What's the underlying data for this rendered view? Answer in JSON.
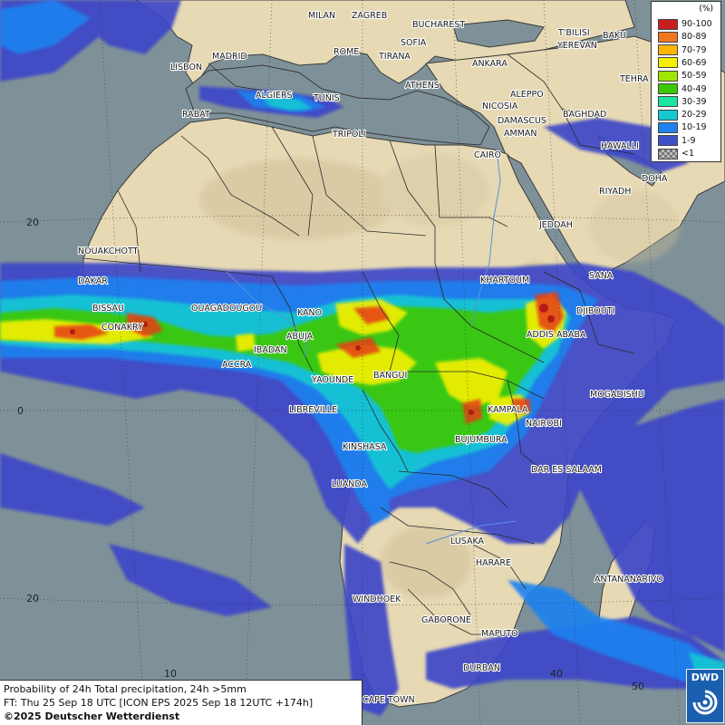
{
  "legend": {
    "unit": "(%)",
    "entries": [
      {
        "label": "90-100",
        "color": "#c81e1e"
      },
      {
        "label": "80-89",
        "color": "#f07820"
      },
      {
        "label": "70-79",
        "color": "#ffb400"
      },
      {
        "label": "60-69",
        "color": "#f5f000"
      },
      {
        "label": "50-59",
        "color": "#a0e600"
      },
      {
        "label": "40-49",
        "color": "#3cc800"
      },
      {
        "label": "30-39",
        "color": "#19e6a0"
      },
      {
        "label": "20-29",
        "color": "#14c8d2"
      },
      {
        "label": "10-19",
        "color": "#1e82f0"
      },
      {
        "label": "1-9",
        "color": "#3c50c8"
      },
      {
        "label": "<1",
        "color": "#9a9a9a"
      }
    ]
  },
  "info": {
    "line1": "Probability of 24h Total precipitation, 24h >5mm",
    "line2": "FT: Thu 25 Sep 18 UTC [ICON EPS 2025 Sep 18 12UTC +174h]",
    "line3": "©2025 Deutscher Wetterdienst"
  },
  "logo": {
    "text": "DWD"
  },
  "grid_labels": [
    "20",
    "0",
    "20",
    "10",
    "40",
    "50"
  ],
  "cities": [
    "MILAN",
    "ZAGREB",
    "BUCHAREST",
    "T'BILISI",
    "BAKU",
    "MADRID",
    "SOFIA",
    "YEREVAN",
    "LISBON",
    "ROME",
    "TIRANA",
    "ANKARA",
    "TEHRA",
    "ATHENS",
    "ALGIERS",
    "TUNIS",
    "ALEPPO",
    "RABAT",
    "NICOSIA",
    "BAGHDAD",
    "DAMASCUS",
    "AMMAN",
    "TRIPOLI",
    "HAWALLI",
    "CAIRO",
    "DOHA",
    "RIYADH",
    "JEDDAH",
    "NOUAKCHOTT",
    "SANA",
    "KHARTOUM",
    "DAKAR",
    "DJIBOUTI",
    "BISSAU",
    "OUAGADOUGOU",
    "KANO",
    "CONAKRY",
    "ADDIS ABABA",
    "ABUJA",
    "IBADAN",
    "ACCRA",
    "BANGUI",
    "YAOUNDE",
    "MOGADISHU",
    "LIBREVILLE",
    "KAMPALA",
    "NAIROBI",
    "BUJUMBURA",
    "KINSHASA",
    "DAR ES SALAAM",
    "LUANDA",
    "LUSAKA",
    "HARARE",
    "ANTANANARIVO",
    "WINDHOEK",
    "GABORONE",
    "MAPUTO",
    "DURBAN",
    "CAPE TOWN"
  ],
  "colors": {
    "sea": "#7f9198",
    "land": "#e8dcb8",
    "border": "#222222"
  }
}
